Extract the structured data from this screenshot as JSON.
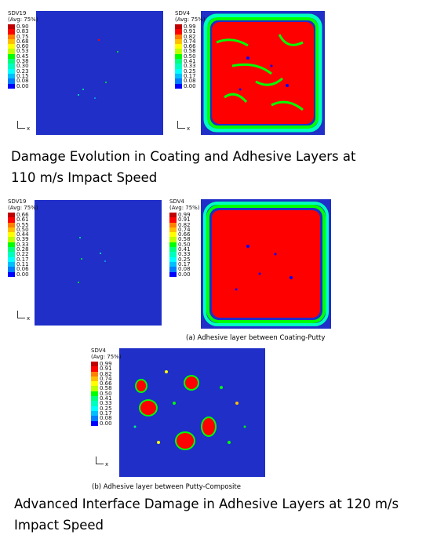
{
  "contour_colors": [
    "#c00000",
    "#ff0000",
    "#ff7f00",
    "#ffbf00",
    "#ffff00",
    "#bfff00",
    "#00ff00",
    "#00ff80",
    "#00ffbf",
    "#00ffff",
    "#00bfff",
    "#007fff",
    "#0000ff"
  ],
  "figures": [
    {
      "variable": "SDV19",
      "avg": "(Avg: 75%)",
      "values": [
        "0.90",
        "0.83",
        "0.75",
        "0.68",
        "0.60",
        "0.53",
        "0.45",
        "0.38",
        "0.30",
        "0.23",
        "0.15",
        "0.08",
        "0.00"
      ]
    },
    {
      "variable": "SDV4",
      "avg": "(Avg: 75%)",
      "values": [
        "0.99",
        "0.91",
        "0.82",
        "0.74",
        "0.66",
        "0.58",
        "0.50",
        "0.41",
        "0.33",
        "0.25",
        "0.17",
        "0.08",
        "0.00"
      ]
    },
    {
      "variable": "SDV19",
      "avg": "(Avg: 75%)",
      "values": [
        "0.66",
        "0.61",
        "0.55",
        "0.50",
        "0.44",
        "0.39",
        "0.33",
        "0.28",
        "0.22",
        "0.17",
        "0.11",
        "0.06",
        "0.00"
      ]
    },
    {
      "variable": "SDV4",
      "avg": "(Avg: 75%)",
      "values": [
        "0.99",
        "0.91",
        "0.82",
        "0.74",
        "0.66",
        "0.58",
        "0.50",
        "0.41",
        "0.33",
        "0.25",
        "0.17",
        "0.08",
        "0.00"
      ]
    },
    {
      "variable": "SDV4",
      "avg": "(Avg: 75%)",
      "values": [
        "0.99",
        "0.91",
        "0.82",
        "0.74",
        "0.66",
        "0.58",
        "0.50",
        "0.41",
        "0.33",
        "0.25",
        "0.17",
        "0.08",
        "0.00"
      ]
    }
  ],
  "axis_triad": {
    "x": "x",
    "y": "y"
  },
  "heading_1": "Damage Evolution in Coating and Adhesive Layers at 110 m/s Impact Speed",
  "caption_a": "(a)  Adhesive layer between Coating-Putty",
  "caption_b": "(b)  Adhesive layer between Putty-Composite",
  "heading_2": "Advanced Interface Damage in Adhesive Layers at 120 m/s Impact Speed"
}
